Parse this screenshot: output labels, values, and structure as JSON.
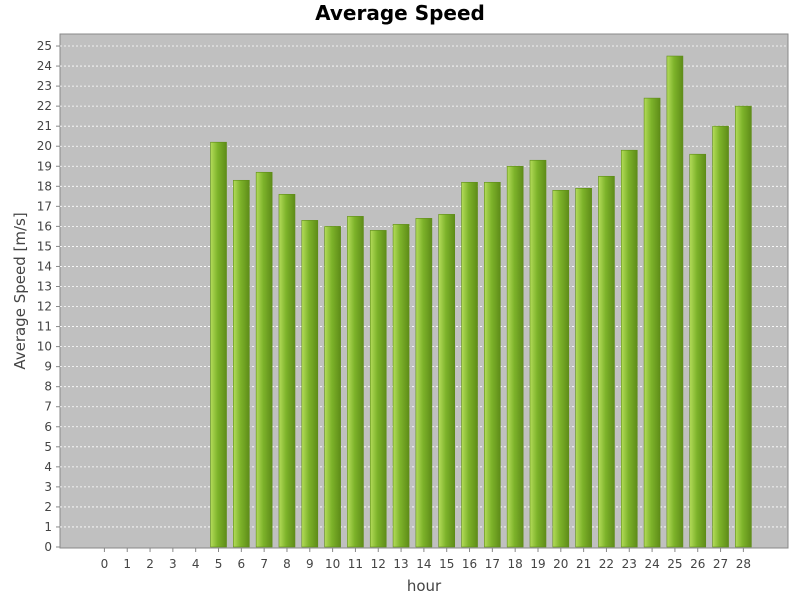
{
  "chart_data": {
    "type": "bar",
    "title": "Average Speed",
    "xlabel": "hour",
    "ylabel": "Average Speed [m/s]",
    "ylim": [
      0,
      25.6
    ],
    "y_ticks": [
      0,
      1,
      2,
      3,
      4,
      5,
      6,
      7,
      8,
      9,
      10,
      11,
      12,
      13,
      14,
      15,
      16,
      17,
      18,
      19,
      20,
      21,
      22,
      23,
      24,
      25
    ],
    "grid": true,
    "categories": [
      "0",
      "1",
      "2",
      "3",
      "4",
      "5",
      "6",
      "7",
      "8",
      "9",
      "10",
      "11",
      "12",
      "13",
      "14",
      "15",
      "16",
      "17",
      "18",
      "19",
      "20",
      "21",
      "22",
      "23",
      "24",
      "25",
      "26",
      "27",
      "28"
    ],
    "values": [
      0,
      0,
      0,
      0,
      0,
      20.2,
      18.3,
      18.7,
      17.6,
      16.3,
      16.0,
      16.5,
      15.8,
      16.1,
      16.4,
      16.6,
      18.2,
      18.2,
      19.0,
      19.3,
      17.8,
      17.9,
      18.5,
      19.8,
      22.4,
      24.5,
      19.6,
      21.0,
      22.0
    ],
    "colors": {
      "plot_background": "#c0c0c0",
      "bar": "#7db32a",
      "bar_light": "#b4dc5a",
      "bar_dark": "#5e8c18",
      "grid": "#ffffff"
    }
  }
}
